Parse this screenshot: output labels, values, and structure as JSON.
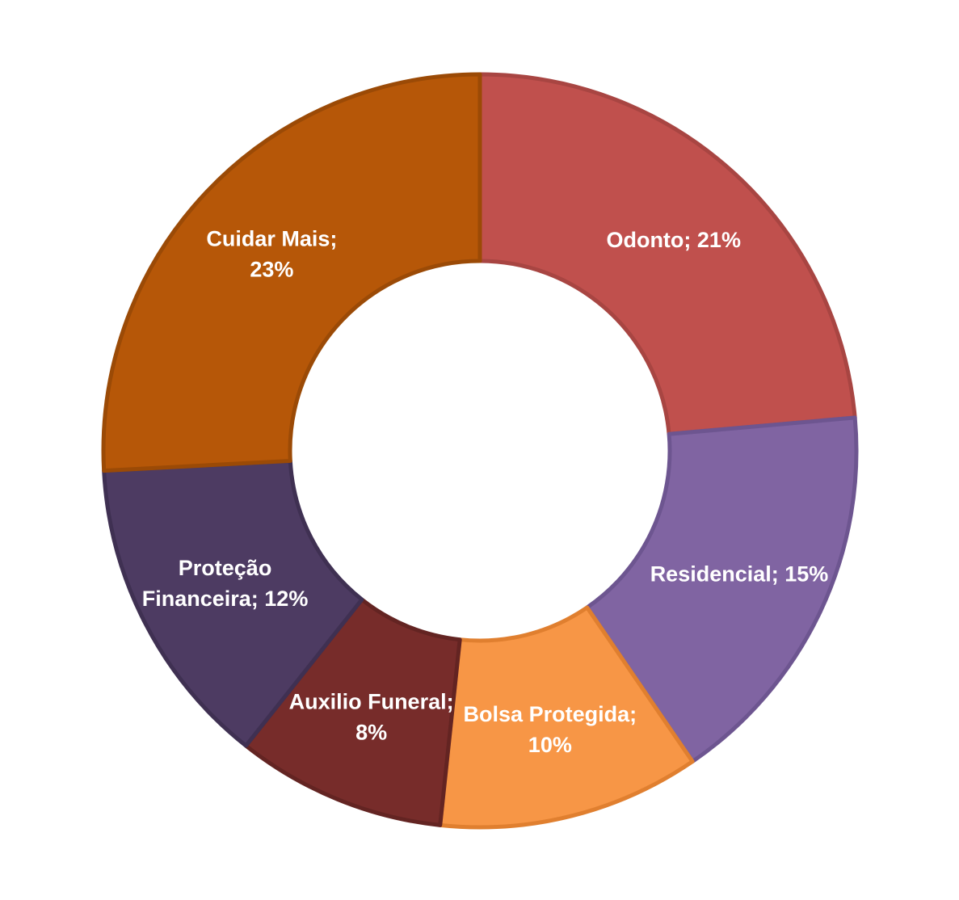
{
  "chart_data": {
    "type": "pie",
    "subtype": "donut",
    "title": "",
    "legend": "none",
    "slices": [
      {
        "label": "Odonto",
        "value": 21,
        "display": "21%",
        "color": "#C0504D",
        "border": "#A84542",
        "label_lines": [
          "Odonto; 21%"
        ]
      },
      {
        "label": "Residencial",
        "value": 15,
        "display": "15%",
        "color": "#8064A2",
        "border": "#6D5590",
        "label_lines": [
          "Residencial; 15%"
        ]
      },
      {
        "label": "Bolsa Protegida",
        "value": 10,
        "display": "10%",
        "color": "#F79646",
        "border": "#E07F2F",
        "label_lines": [
          "Bolsa Protegida;",
          "10%"
        ]
      },
      {
        "label": "Auxilio Funeral",
        "value": 8,
        "display": "8%",
        "color": "#772C2A",
        "border": "#632422",
        "label_lines": [
          "Auxilio Funeral;",
          "8%"
        ]
      },
      {
        "label": "Proteção Financeira",
        "value": 12,
        "display": "12%",
        "color": "#4D3B62",
        "border": "#3F3052",
        "label_lines": [
          "Proteção",
          "Financeira; 12%"
        ]
      },
      {
        "label": "Cuidar Mais",
        "value": 23,
        "display": "23%",
        "color": "#B65708",
        "border": "#9B4A06",
        "label_lines": [
          "Cuidar Mais;",
          "23%"
        ]
      }
    ]
  }
}
